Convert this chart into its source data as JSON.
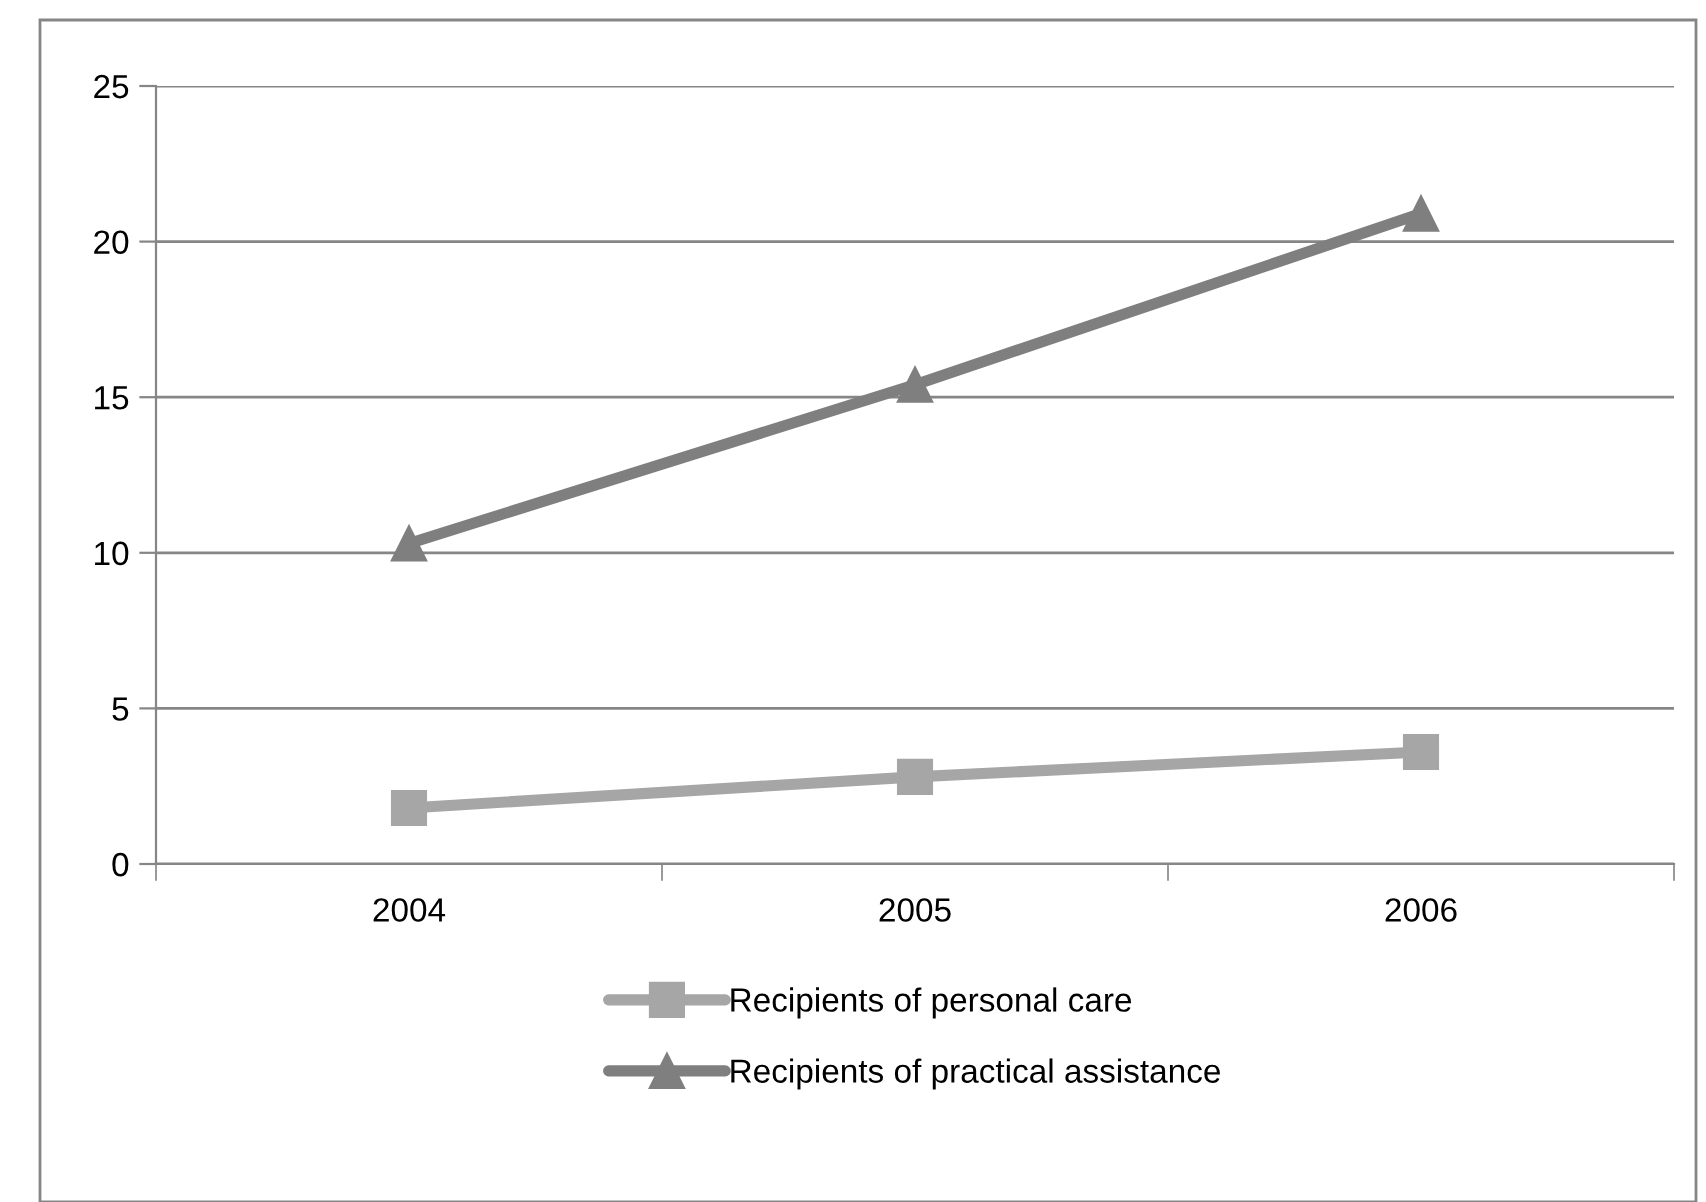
{
  "chart_data": {
    "type": "line",
    "categories": [
      "2004",
      "2005",
      "2006"
    ],
    "series": [
      {
        "name": "Recipients of personal care",
        "color": "#a6a6a6",
        "values": [
          1.8,
          2.8,
          3.6
        ],
        "marker": "square"
      },
      {
        "name": "Recipients of practical assistance",
        "color": "#7f7f7f",
        "values": [
          10.3,
          15.4,
          20.9
        ],
        "marker": "triangle"
      }
    ],
    "ylim": [
      0,
      25
    ],
    "yticks": [
      0,
      5,
      10,
      15,
      20,
      25
    ],
    "grid": "y",
    "legend": "bottom",
    "line_style": "solid"
  }
}
